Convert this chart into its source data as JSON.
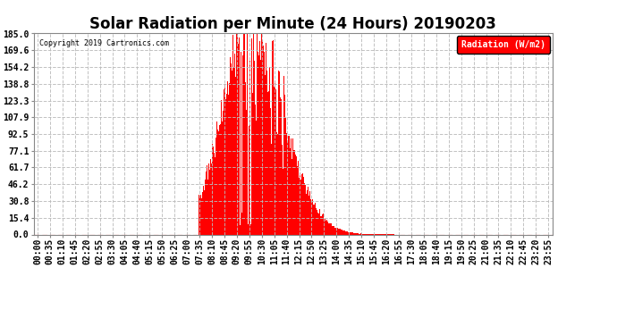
{
  "title": "Solar Radiation per Minute (24 Hours) 20190203",
  "copyright_text": "Copyright 2019 Cartronics.com",
  "ylabel": "Radiation (W/m2)",
  "y_ticks": [
    0.0,
    15.4,
    30.8,
    46.2,
    61.7,
    77.1,
    92.5,
    107.9,
    123.3,
    138.8,
    154.2,
    169.6,
    185.0
  ],
  "ylim": [
    0.0,
    185.0
  ],
  "bar_color": "#FF0000",
  "background_color": "#FFFFFF",
  "plot_bg_color": "#FFFFFF",
  "grid_color": "#BBBBBB",
  "dashed_line_color": "#FF0000",
  "legend_bg_color": "#FF0000",
  "legend_text_color": "#FFFFFF",
  "title_fontsize": 12,
  "tick_fontsize": 7,
  "x_tick_labels": [
    "00:00",
    "00:35",
    "01:10",
    "01:45",
    "02:20",
    "02:55",
    "03:30",
    "04:05",
    "04:40",
    "05:15",
    "05:50",
    "06:25",
    "07:00",
    "07:35",
    "08:10",
    "08:45",
    "09:20",
    "09:55",
    "10:30",
    "11:05",
    "11:40",
    "12:15",
    "12:50",
    "13:25",
    "14:00",
    "14:35",
    "15:10",
    "15:45",
    "16:20",
    "16:55",
    "17:30",
    "18:05",
    "18:40",
    "19:15",
    "19:50",
    "20:25",
    "21:00",
    "21:35",
    "22:10",
    "22:45",
    "23:20",
    "23:55"
  ],
  "sunrise_min": 455,
  "sunset_min": 1005,
  "peak_min": 595,
  "peak_val": 185.0,
  "rise_sigma": 75,
  "set_sigma": 95,
  "spike_seed": 7,
  "n_minutes": 1440
}
